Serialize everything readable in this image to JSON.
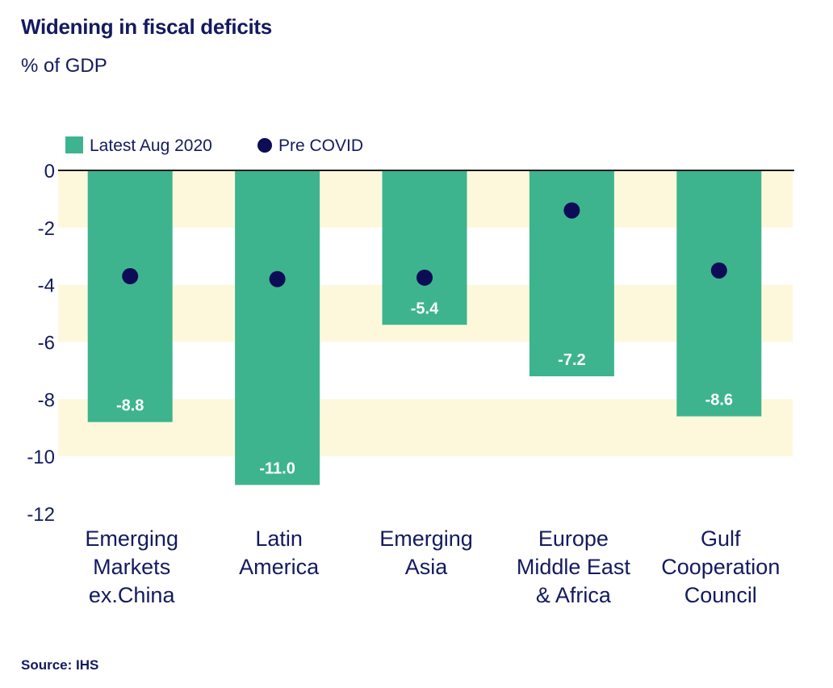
{
  "header": {
    "title": "Widening in fiscal deficits",
    "subtitle": "% of GDP"
  },
  "footer": {
    "source": "Source: IHS"
  },
  "colors": {
    "bar": "#3db48e",
    "dot": "#0d0d55",
    "band": "#fdf8dc",
    "text": "#141a5e",
    "axis": "#1a1a1a",
    "label": "#ffffff"
  },
  "chart_data": {
    "type": "bar",
    "categories": [
      [
        "Emerging",
        "Markets",
        "ex.China"
      ],
      [
        "Latin",
        "America"
      ],
      [
        "Emerging",
        "Asia"
      ],
      [
        "Europe",
        "Middle East",
        "& Africa"
      ],
      [
        "Gulf",
        "Cooperation",
        "Council"
      ]
    ],
    "series": [
      {
        "name": "Latest Aug 2020",
        "kind": "bar",
        "values": [
          -8.8,
          -11.0,
          -5.4,
          -7.2,
          -8.6
        ],
        "data_labels": [
          "-8.8",
          "-11.0",
          "-5.4",
          "-7.2",
          "-8.6"
        ]
      },
      {
        "name": "Pre COVID",
        "kind": "dot",
        "values": [
          -3.7,
          -3.8,
          -3.75,
          -1.4,
          -3.5
        ]
      }
    ],
    "yticks": [
      0,
      -2,
      -4,
      -6,
      -8,
      -10,
      -12
    ],
    "ytick_labels": [
      "0",
      "-2",
      "-4",
      "-6",
      "-8",
      "-10",
      "-12"
    ],
    "ylim": [
      -12,
      0
    ],
    "bands": [
      [
        -2,
        0
      ],
      [
        -6,
        -4
      ],
      [
        -10,
        -8
      ]
    ],
    "legend": "top-left",
    "grid": false
  }
}
